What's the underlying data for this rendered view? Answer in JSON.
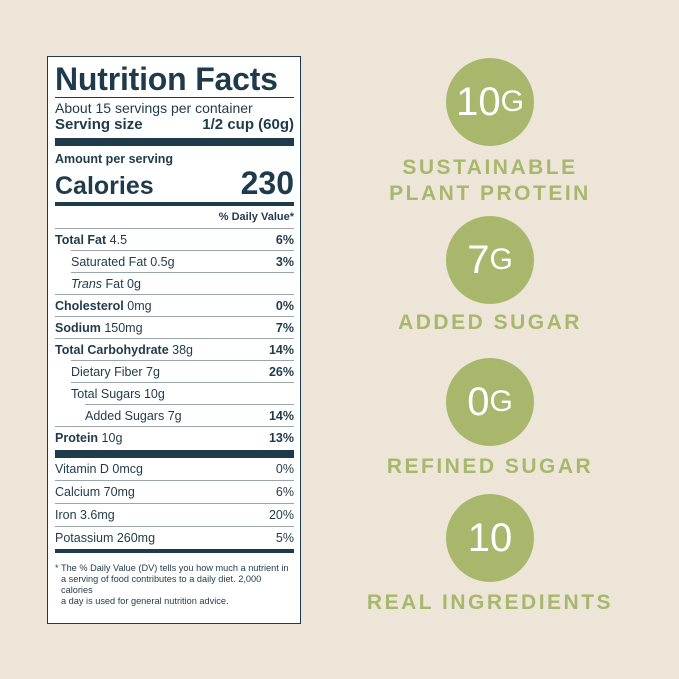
{
  "label": {
    "title": "Nutrition Facts",
    "servings_per_container": "About 15 servings per container",
    "serving_size_label": "Serving size",
    "serving_size_value": "1/2 cup (60g)",
    "amount_per_serving": "Amount per serving",
    "calories_label": "Calories",
    "calories_value": "230",
    "daily_value_header": "% Daily Value*",
    "nutrients": [
      {
        "name": "Total Fat",
        "amount": "4.5",
        "dv": "6%"
      },
      {
        "name": "Saturated Fat 0.5g",
        "dv": "3%"
      },
      {
        "name_italic": "Trans",
        "name_rest": " Fat 0g"
      },
      {
        "name": "Cholesterol",
        "amount": "0mg",
        "dv": "0%"
      },
      {
        "name": "Sodium",
        "amount": "150mg",
        "dv": "7%"
      },
      {
        "name": "Total Carbohydrate",
        "amount": "38g",
        "dv": "14%"
      },
      {
        "name": "Dietary Fiber 7g",
        "dv": "26%"
      },
      {
        "name": "Total Sugars 10g"
      },
      {
        "name": "Added Sugars 7g",
        "dv": "14%"
      },
      {
        "name": "Protein",
        "amount": "10g",
        "dv": "13%"
      }
    ],
    "vitamins": [
      {
        "name": "Vitamin D 0mcg",
        "dv": "0%"
      },
      {
        "name": "Calcium 70mg",
        "dv": "6%"
      },
      {
        "name": "Iron 3.6mg",
        "dv": "20%"
      },
      {
        "name": "Potassium 260mg",
        "dv": "5%"
      }
    ],
    "footnote_lines": [
      "* The % Daily Value (DV) tells you how much a nutrient in",
      "a serving of food contributes to a daily diet. 2,000 calories",
      "a day is used for general nutrition advice."
    ]
  },
  "badges": [
    {
      "number": "10",
      "unit": "G",
      "label_lines": [
        "SUSTAINABLE",
        "PLANT PROTEIN"
      ]
    },
    {
      "number": "7",
      "unit": "G",
      "label_lines": [
        "ADDED SUGAR"
      ]
    },
    {
      "number": "0",
      "unit": "G",
      "label_lines": [
        "REFINED SUGAR"
      ]
    },
    {
      "number": "10",
      "unit": "",
      "label_lines": [
        "REAL INGREDIENTS"
      ]
    }
  ],
  "colors": {
    "background": "#ede5d8",
    "label_ink": "#1f3b4b",
    "badge_green": "#a9b76d"
  }
}
